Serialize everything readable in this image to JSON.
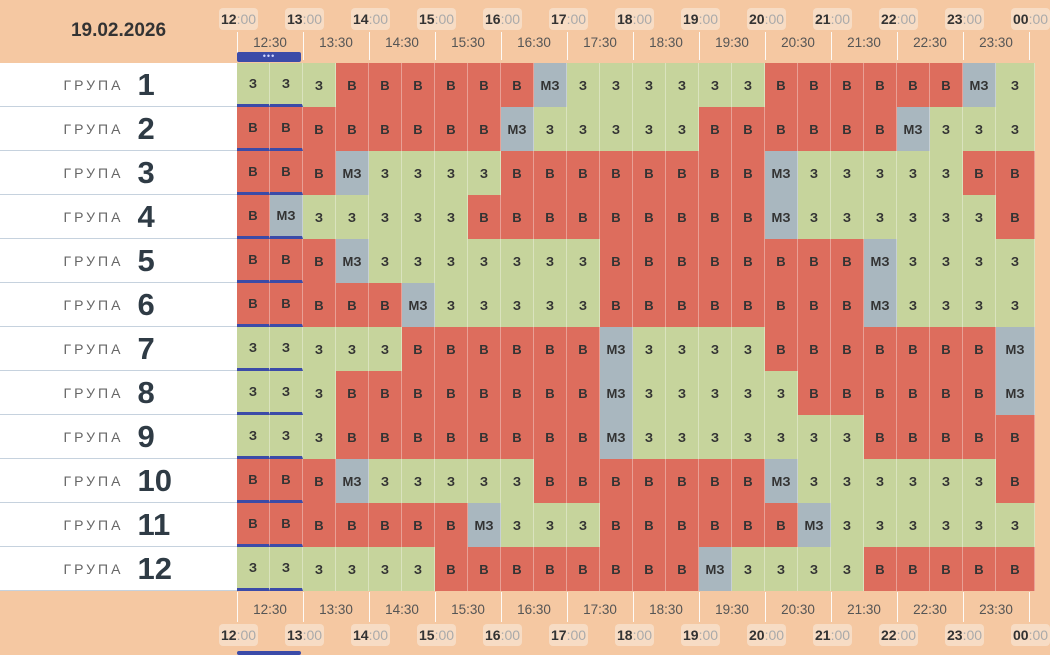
{
  "date": "19.02.2026",
  "hours": [
    {
      "h": "12",
      "m": ":00"
    },
    {
      "h": "13",
      "m": ":00"
    },
    {
      "h": "14",
      "m": ":00"
    },
    {
      "h": "15",
      "m": ":00"
    },
    {
      "h": "16",
      "m": ":00"
    },
    {
      "h": "17",
      "m": ":00"
    },
    {
      "h": "18",
      "m": ":00"
    },
    {
      "h": "19",
      "m": ":00"
    },
    {
      "h": "20",
      "m": ":00"
    },
    {
      "h": "21",
      "m": ":00"
    },
    {
      "h": "22",
      "m": ":00"
    },
    {
      "h": "23",
      "m": ":00"
    },
    {
      "h": "00",
      "m": ":00"
    }
  ],
  "half_labels": [
    "12:30",
    "13:30",
    "14:30",
    "15:30",
    "16:30",
    "17:30",
    "18:30",
    "19:30",
    "20:30",
    "21:30",
    "22:30",
    "23:30"
  ],
  "group_word": "ГРУПА",
  "now_indicator": "•••",
  "state_labels": {
    "Z": "З",
    "V": "В",
    "M": "МЗ"
  },
  "colors": {
    "on": "#c6d49c",
    "off": "#dd6d5d",
    "maybe": "#a9b7bf",
    "accent": "#3b4ba8",
    "header_bg": "#f5c8a2"
  },
  "groups": [
    {
      "number": "1",
      "slots": "ZZZVVVVVVMZZZZZZVVVVVVMZ"
    },
    {
      "number": "2",
      "slots": "VVVVVVVVMZZZZZVVVVVVMZZZ"
    },
    {
      "number": "3",
      "slots": "VVVMZZZZVVVVVVVVMZZZZZVV"
    },
    {
      "number": "4",
      "slots": "VMZZZZZVVVVVVVVVMZZZZZZV"
    },
    {
      "number": "5",
      "slots": "VVVMZZZZZZZVVVVVVVVMZZZZ"
    },
    {
      "number": "6",
      "slots": "VVVVVMZZZZZVVVVVVVVMZZZZ"
    },
    {
      "number": "7",
      "slots": "ZZZZZVVVVVVMZZZZVVVVVVVM"
    },
    {
      "number": "8",
      "slots": "ZZZVVVVVVVVMZZZZZVVVVVVM"
    },
    {
      "number": "9",
      "slots": "ZZZVVVVVVVVMZZZZZZZVVVVV"
    },
    {
      "number": "10",
      "slots": "VVVMZZZZZVVVVVVVMZZZZZZV"
    },
    {
      "number": "11",
      "slots": "VVVVVVVMZZZVVVVVVMZZZZZZ"
    },
    {
      "number": "12",
      "slots": "ZZZZZZVVVVVVVVMZZZZVVVVV"
    }
  ]
}
